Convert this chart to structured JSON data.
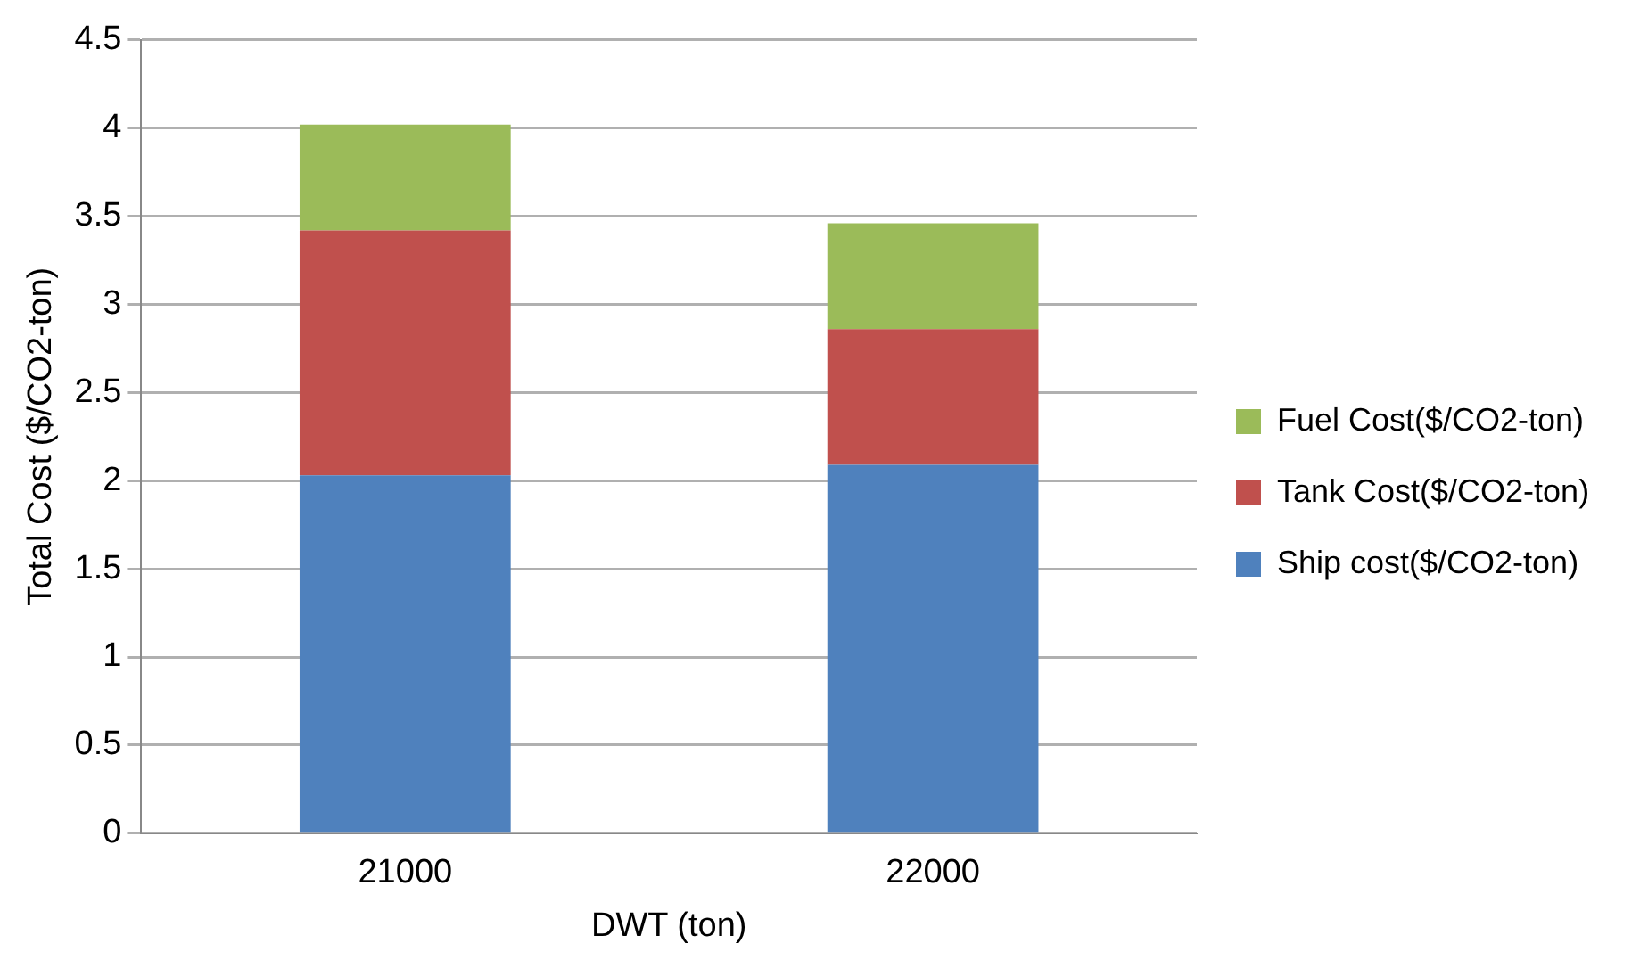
{
  "chart_data": {
    "type": "bar",
    "stacked": true,
    "xlabel": "DWT (ton)",
    "ylabel": "Total Cost ($/CO2-ton)",
    "categories": [
      "21000",
      "22000"
    ],
    "series": [
      {
        "name": "Ship cost($/CO2-ton)",
        "color": "#4f81bd",
        "values": [
          2.03,
          2.09
        ]
      },
      {
        "name": "Tank Cost($/CO2-ton)",
        "color": "#c0504d",
        "values": [
          1.39,
          0.77
        ]
      },
      {
        "name": "Fuel Cost($/CO2-ton)",
        "color": "#9bbb59",
        "values": [
          0.6,
          0.6
        ]
      }
    ],
    "ylim": [
      0,
      4.5
    ],
    "yticks": [
      0,
      0.5,
      1,
      1.5,
      2,
      2.5,
      3,
      3.5,
      4,
      4.5
    ],
    "grid": "y",
    "legend": "right"
  }
}
